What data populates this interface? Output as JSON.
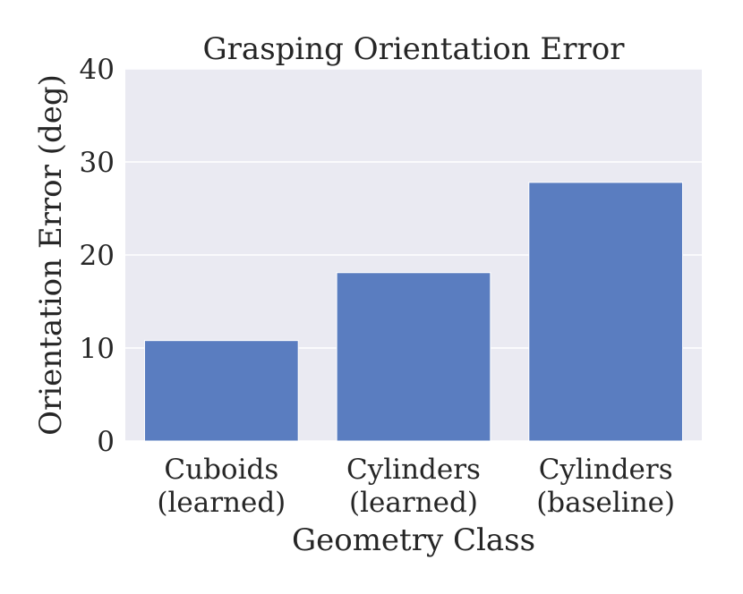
{
  "chart_data": {
    "type": "bar",
    "title": "Grasping Orientation Error",
    "xlabel": "Geometry Class",
    "ylabel": "Orientation Error (deg)",
    "categories": [
      [
        "Cuboids",
        "(learned)"
      ],
      [
        "Cylinders",
        "(learned)"
      ],
      [
        "Cylinders",
        "(baseline)"
      ]
    ],
    "values": [
      10.8,
      18.1,
      27.8
    ],
    "ylim": [
      0,
      40
    ],
    "yticks": [
      "0",
      "10",
      "20",
      "30",
      "40"
    ],
    "grid": true,
    "colors": {
      "bar": "#5a7dc0",
      "plot_bg": "#eaeaf2",
      "grid": "#ffffff"
    }
  }
}
